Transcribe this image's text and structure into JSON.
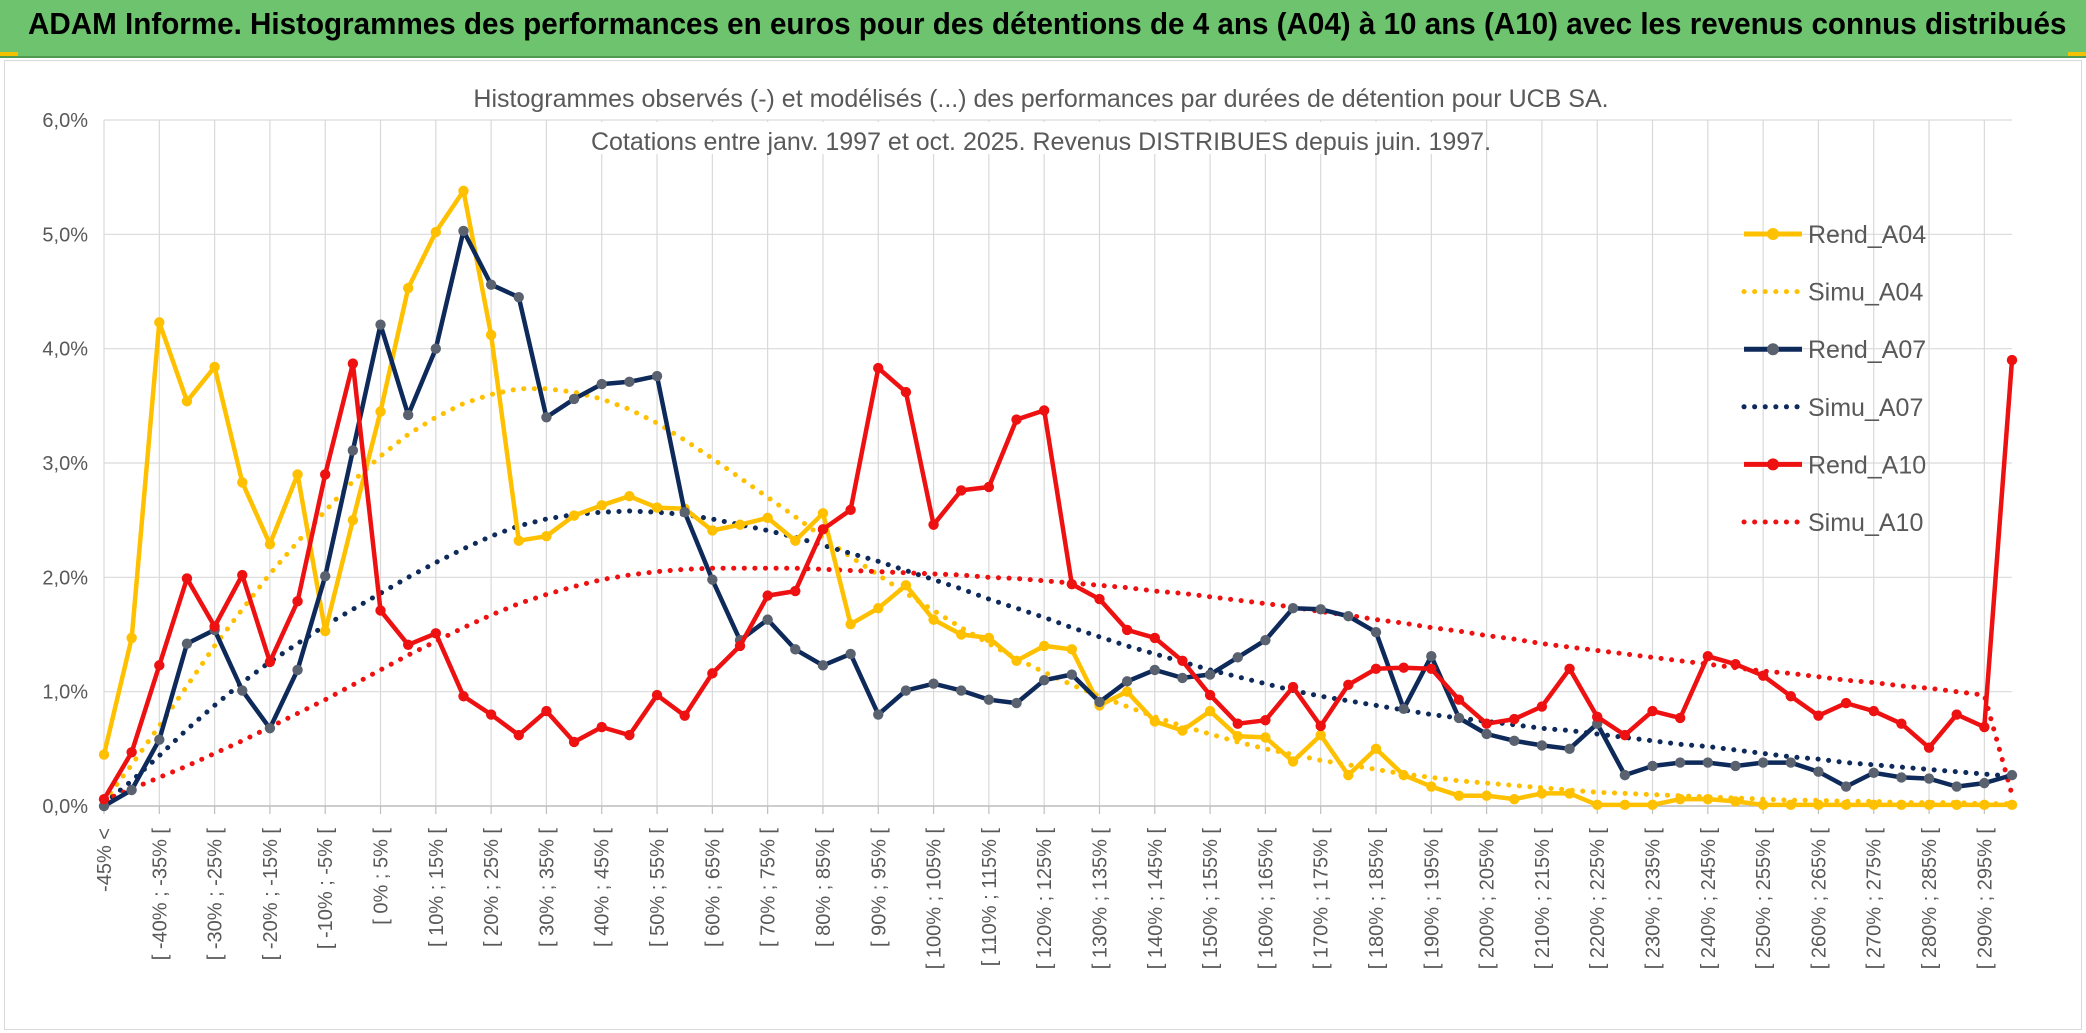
{
  "header": {
    "title": "ADAM Informe. Histogrammes des performances en euros pour des détentions de 4 ans (A04) à 10 ans (A10) avec les revenus connus distribués"
  },
  "chart_data": {
    "type": "line",
    "title": "Histogrammes observés (-) et modélisés (...) des performances par durées de détention pour UCB SA.",
    "subtitle": "Cotations entre janv. 1997 et oct. 2025. Revenus DISTRIBUES depuis juin. 1997.",
    "xlabel": "",
    "ylabel": "",
    "ylim": [
      0,
      6
    ],
    "y_ticks": [
      "0,0%",
      "1,0%",
      "2,0%",
      "3,0%",
      "4,0%",
      "5,0%",
      "6,0%"
    ],
    "grid": true,
    "legend_position": "right",
    "x_tick_labels": [
      "-45% <",
      "[ -40% ; -35% [",
      "[ -30% ; -25% [",
      "[ -20% ; -15% [",
      "[ -10% ; -5% [",
      "[ 0% ; 5% [",
      "[ 10% ; 15% [",
      "[ 20% ; 25% [",
      "[ 30% ; 35% [",
      "[ 40% ; 45% [",
      "[ 50% ; 55% [",
      "[ 60% ; 65% [",
      "[ 70% ; 75% [",
      "[ 80% ; 85% [",
      "[ 90% ; 95% [",
      "[ 100% ; 105% [",
      "[ 110% ; 115% [",
      "[ 120% ; 125% [",
      "[ 130% ; 135% [",
      "[ 140% ; 145% [",
      "[ 150% ; 155% [",
      "[ 160% ; 165% [",
      "[ 170% ; 175% [",
      "[ 180% ; 185% [",
      "[ 190% ; 195% [",
      "[ 200% ; 205% [",
      "[ 210% ; 215% [",
      "[ 220% ; 225% [",
      "[ 230% ; 235% [",
      "[ 240% ; 245% [",
      "[ 250% ; 255% [",
      "[ 260% ; 265% [",
      "[ 270% ; 275% [",
      "[ 280% ; 285% [",
      "[ 290% ; 295% ["
    ],
    "series": [
      {
        "name": "Rend_A04",
        "color": "#FFC000",
        "style": "solid",
        "values": [
          0.45,
          1.47,
          4.23,
          3.54,
          3.84,
          2.83,
          2.29,
          2.9,
          1.53,
          2.5,
          3.45,
          4.53,
          5.02,
          5.38,
          4.12,
          2.32,
          2.36,
          2.54,
          2.63,
          2.71,
          2.61,
          2.6,
          2.41,
          2.46,
          2.52,
          2.32,
          2.56,
          1.59,
          1.73,
          1.93,
          1.63,
          1.5,
          1.47,
          1.27,
          1.4,
          1.37,
          0.88,
          1.0,
          0.74,
          0.66,
          0.83,
          0.61,
          0.6,
          0.39,
          0.62,
          0.27,
          0.5,
          0.27,
          0.17,
          0.09,
          0.09,
          0.06,
          0.11,
          0.11,
          0.01,
          0.01,
          0.01,
          0.06,
          0.06,
          0.04,
          0.01,
          0.01,
          0.01,
          0.01,
          0.01,
          0.01,
          0.01,
          0.01,
          0.01,
          0.01
        ]
      },
      {
        "name": "Simu_A04",
        "color": "#FFC000",
        "style": "dotted",
        "values": [
          0.04,
          0.36,
          0.7,
          1.05,
          1.4,
          1.72,
          2.03,
          2.31,
          2.58,
          2.84,
          3.06,
          3.25,
          3.4,
          3.52,
          3.6,
          3.65,
          3.65,
          3.62,
          3.56,
          3.47,
          3.35,
          3.2,
          3.04,
          2.87,
          2.7,
          2.53,
          2.35,
          2.18,
          2.02,
          1.86,
          1.71,
          1.56,
          1.42,
          1.29,
          1.17,
          1.06,
          0.96,
          0.87,
          0.78,
          0.7,
          0.63,
          0.56,
          0.5,
          0.45,
          0.4,
          0.36,
          0.32,
          0.28,
          0.25,
          0.22,
          0.2,
          0.18,
          0.16,
          0.14,
          0.12,
          0.11,
          0.1,
          0.09,
          0.08,
          0.07,
          0.06,
          0.05,
          0.05,
          0.04,
          0.04,
          0.03,
          0.03,
          0.03,
          0.02,
          0.02
        ]
      },
      {
        "name": "Rend_A07",
        "color": "#0E2A5A",
        "style": "solid",
        "values": [
          0.0,
          0.14,
          0.58,
          1.42,
          1.54,
          1.01,
          0.68,
          1.19,
          2.01,
          3.11,
          4.21,
          3.42,
          4.0,
          5.03,
          4.56,
          4.45,
          3.4,
          3.56,
          3.69,
          3.71,
          3.76,
          2.57,
          1.98,
          1.45,
          1.63,
          1.37,
          1.23,
          1.33,
          0.8,
          1.01,
          1.07,
          1.01,
          0.93,
          0.9,
          1.1,
          1.15,
          0.91,
          1.09,
          1.19,
          1.12,
          1.15,
          1.3,
          1.45,
          1.73,
          1.72,
          1.66,
          1.52,
          0.85,
          1.31,
          0.77,
          0.63,
          0.57,
          0.53,
          0.5,
          0.72,
          0.27,
          0.35,
          0.38,
          0.38,
          0.35,
          0.38,
          0.38,
          0.3,
          0.17,
          0.29,
          0.25,
          0.24,
          0.17,
          0.2,
          0.27
        ]
      },
      {
        "name": "Simu_A07",
        "color": "#0E2A5A",
        "style": "dotted",
        "values": [
          0.02,
          0.22,
          0.44,
          0.67,
          0.88,
          1.08,
          1.26,
          1.42,
          1.58,
          1.72,
          1.86,
          2.0,
          2.13,
          2.25,
          2.36,
          2.45,
          2.51,
          2.55,
          2.57,
          2.58,
          2.57,
          2.55,
          2.51,
          2.46,
          2.41,
          2.35,
          2.28,
          2.21,
          2.14,
          2.06,
          1.98,
          1.9,
          1.81,
          1.73,
          1.65,
          1.56,
          1.48,
          1.4,
          1.33,
          1.26,
          1.19,
          1.13,
          1.07,
          1.01,
          0.96,
          0.92,
          0.88,
          0.84,
          0.8,
          0.77,
          0.74,
          0.71,
          0.68,
          0.66,
          0.63,
          0.6,
          0.57,
          0.54,
          0.52,
          0.49,
          0.46,
          0.43,
          0.41,
          0.38,
          0.36,
          0.34,
          0.32,
          0.3,
          0.28,
          0.26
        ]
      },
      {
        "name": "Rend_A10",
        "color": "#EE1111",
        "style": "solid",
        "values": [
          0.06,
          0.47,
          1.23,
          1.99,
          1.57,
          2.02,
          1.26,
          1.79,
          2.9,
          3.87,
          1.71,
          1.41,
          1.51,
          0.96,
          0.8,
          0.62,
          0.83,
          0.56,
          0.69,
          0.62,
          0.97,
          0.79,
          1.16,
          1.4,
          1.84,
          1.88,
          2.42,
          2.59,
          3.83,
          3.62,
          2.46,
          2.76,
          2.79,
          3.38,
          3.46,
          1.94,
          1.81,
          1.54,
          1.47,
          1.27,
          0.97,
          0.72,
          0.75,
          1.04,
          0.7,
          1.06,
          1.2,
          1.21,
          1.2,
          0.93,
          0.72,
          0.76,
          0.87,
          1.2,
          0.78,
          0.62,
          0.83,
          0.77,
          1.31,
          1.24,
          1.14,
          0.96,
          0.79,
          0.9,
          0.83,
          0.72,
          0.51,
          0.8,
          0.69,
          3.9
        ]
      },
      {
        "name": "Simu_A10",
        "color": "#EE1111",
        "style": "dotted",
        "values": [
          0.05,
          0.15,
          0.25,
          0.35,
          0.46,
          0.57,
          0.69,
          0.81,
          0.93,
          1.06,
          1.19,
          1.32,
          1.44,
          1.56,
          1.67,
          1.77,
          1.85,
          1.92,
          1.98,
          2.02,
          2.05,
          2.07,
          2.08,
          2.08,
          2.08,
          2.08,
          2.07,
          2.06,
          2.05,
          2.04,
          2.03,
          2.02,
          2.0,
          1.99,
          1.97,
          1.95,
          1.93,
          1.91,
          1.88,
          1.86,
          1.83,
          1.8,
          1.77,
          1.74,
          1.7,
          1.67,
          1.63,
          1.6,
          1.56,
          1.53,
          1.49,
          1.46,
          1.42,
          1.39,
          1.36,
          1.33,
          1.3,
          1.27,
          1.24,
          1.21,
          1.18,
          1.16,
          1.13,
          1.1,
          1.08,
          1.05,
          1.03,
          1.0,
          0.97,
          0.1
        ]
      }
    ]
  }
}
